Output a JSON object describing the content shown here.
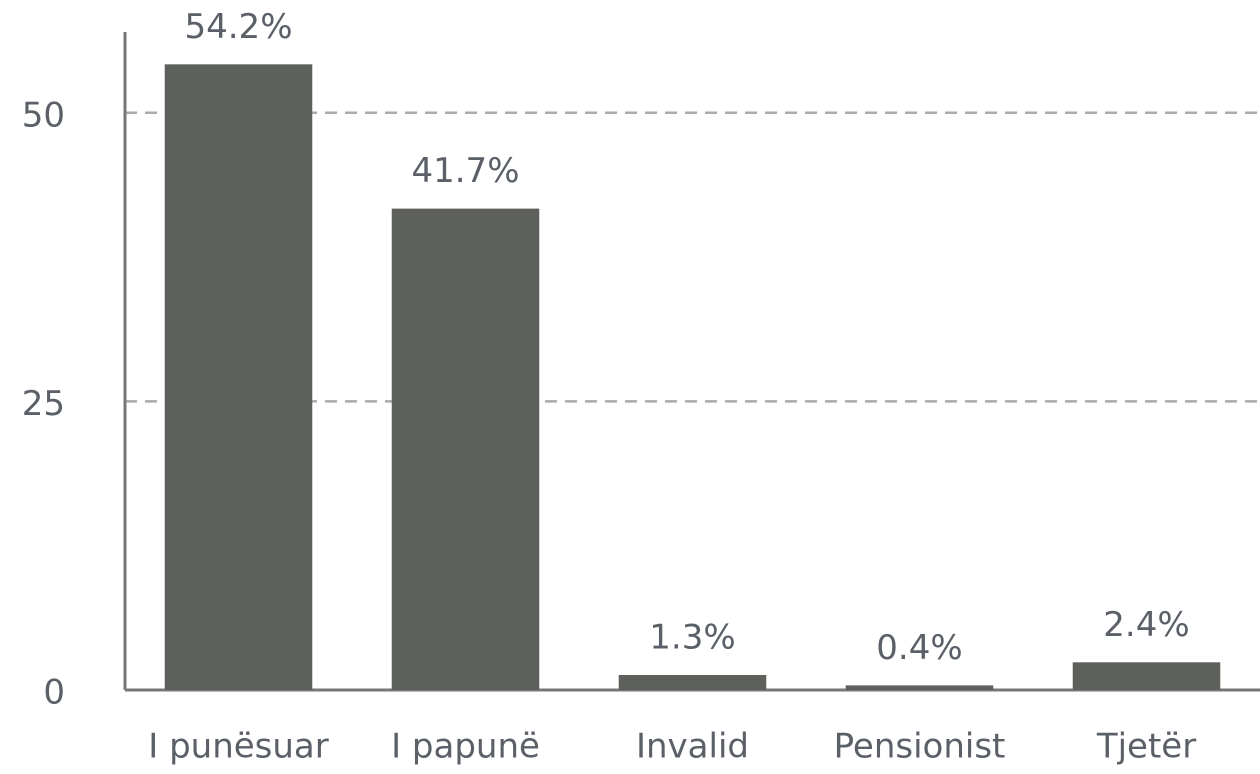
{
  "chart_data": {
    "type": "bar",
    "categories": [
      "I punësuar",
      "I papunë",
      "Invalid",
      "Pensionist",
      "Tjetër"
    ],
    "values": [
      54.2,
      41.7,
      1.3,
      0.4,
      2.4
    ],
    "value_labels": [
      "54.2%",
      "41.7%",
      "1.3%",
      "0.4%",
      "2.4%"
    ],
    "color": "#5d605b",
    "ylim": [
      0,
      57
    ],
    "yticks": [
      0,
      25,
      50
    ],
    "grid": true
  }
}
